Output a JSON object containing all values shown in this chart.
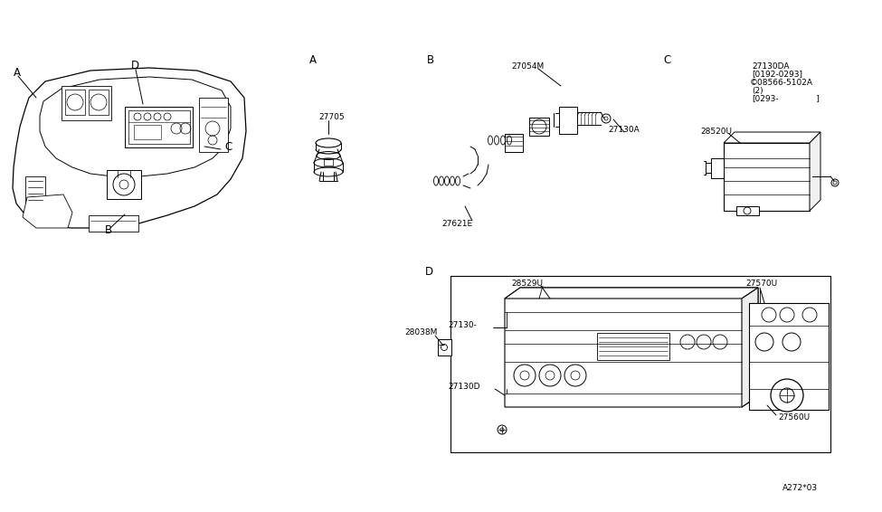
{
  "bg_color": "#ffffff",
  "line_color": "#000000",
  "fig_width": 9.75,
  "fig_height": 5.66,
  "dpi": 100,
  "labels": {
    "part_27705": "27705",
    "part_27054M": "27054M",
    "part_27130A": "27130A",
    "part_27621E": "27621E",
    "part_27130DA": "27130DA",
    "part_date1": "[0192-0293]",
    "part_08566": "©08566-5102A",
    "part_2": "(2)",
    "part_date2": "[0293-",
    "part_date2b": "]",
    "part_28520U": "28520U",
    "part_28529U": "28529U",
    "part_27130": "27130-",
    "part_27130D": "27130D",
    "part_28038M": "28038M",
    "part_27570U": "27570U",
    "part_27560U": "27560U",
    "watermark": "A272*03"
  },
  "font_size_small": 6.5,
  "font_size_section": 8.5
}
